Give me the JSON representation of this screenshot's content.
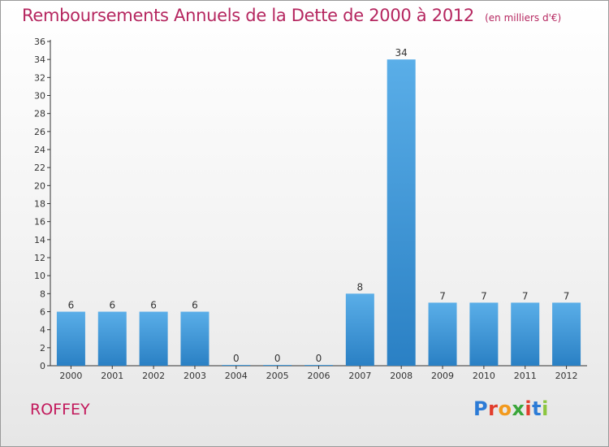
{
  "header": {
    "title": "Remboursements Annuels de la Dette de 2000 à 2012",
    "subtitle": "(en milliers d'€)"
  },
  "footer": {
    "commune": "ROFFEY",
    "logo_text": "Proxiti"
  },
  "colors": {
    "title": "#b5265f",
    "bar_light": "#5aaee8",
    "bar_dark": "#2a80c4",
    "logo": [
      "#2c7bd6",
      "#e23d2c",
      "#f29a1e",
      "#3aa63a",
      "#e23d2c",
      "#2c7bd6",
      "#8cc63f"
    ]
  },
  "chart_data": {
    "type": "bar",
    "categories": [
      "2000",
      "2001",
      "2002",
      "2003",
      "2004",
      "2005",
      "2006",
      "2007",
      "2008",
      "2009",
      "2010",
      "2011",
      "2012"
    ],
    "values": [
      6,
      6,
      6,
      6,
      0,
      0,
      0,
      8,
      34,
      7,
      7,
      7,
      7
    ],
    "ylim": [
      0,
      36
    ],
    "yticks": [
      0,
      2,
      4,
      6,
      8,
      10,
      12,
      14,
      16,
      18,
      20,
      22,
      24,
      26,
      28,
      30,
      32,
      34,
      36
    ],
    "grid": false,
    "data_labels": true
  }
}
